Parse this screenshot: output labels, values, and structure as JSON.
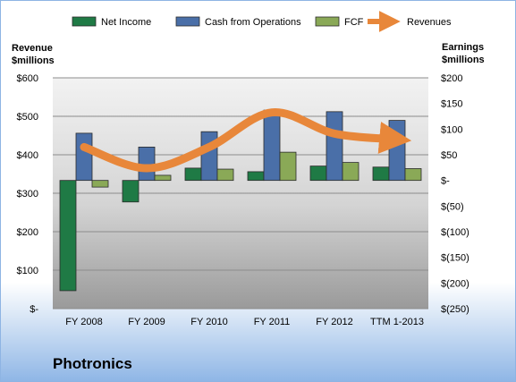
{
  "chart_data": {
    "type": "bar",
    "title": "",
    "brand_label": "Photronics",
    "left_axis": {
      "label_line1": "Revenue",
      "label_line2": "$millions",
      "min": 0,
      "max": 600,
      "ticks": [
        {
          "value": 0,
          "label": "$-"
        },
        {
          "value": 100,
          "label": "$100"
        },
        {
          "value": 200,
          "label": "$200"
        },
        {
          "value": 300,
          "label": "$300"
        },
        {
          "value": 400,
          "label": "$400"
        },
        {
          "value": 500,
          "label": "$500"
        },
        {
          "value": 600,
          "label": "$600"
        }
      ]
    },
    "right_axis": {
      "label_line1": "Earnings",
      "label_line2": "$millions",
      "min": -250,
      "max": 200,
      "ticks": [
        {
          "value": 200,
          "label": "$200"
        },
        {
          "value": 150,
          "label": "$150"
        },
        {
          "value": 100,
          "label": "$100"
        },
        {
          "value": 50,
          "label": "$50"
        },
        {
          "value": 0,
          "label": "$-"
        },
        {
          "value": -50,
          "label": "$(50)"
        },
        {
          "value": -100,
          "label": "$(100)"
        },
        {
          "value": -150,
          "label": "$(150)"
        },
        {
          "value": -200,
          "label": "$(200)"
        },
        {
          "value": -250,
          "label": "$(250)"
        }
      ]
    },
    "categories": [
      "FY 2008",
      "FY 2009",
      "FY 2010",
      "FY 2011",
      "FY 2012",
      "TTM 1-2013"
    ],
    "series": [
      {
        "name": "Net Income",
        "axis": "right",
        "kind": "bar",
        "color": "#1f7a45",
        "values": [
          -215,
          -42,
          24,
          17,
          28,
          26
        ]
      },
      {
        "name": "Cash from Operations",
        "axis": "right",
        "kind": "bar",
        "color": "#4a6fa8",
        "values": [
          92,
          65,
          95,
          137,
          134,
          117
        ]
      },
      {
        "name": "FCF",
        "axis": "right",
        "kind": "bar",
        "color": "#8aa957",
        "values": [
          -13,
          10,
          22,
          55,
          35,
          23
        ]
      },
      {
        "name": "Revenues",
        "axis": "left",
        "kind": "line",
        "color": "#e8873a",
        "values": [
          420,
          365,
          420,
          510,
          455,
          440
        ]
      }
    ],
    "grid": true,
    "legend_position": "top"
  }
}
